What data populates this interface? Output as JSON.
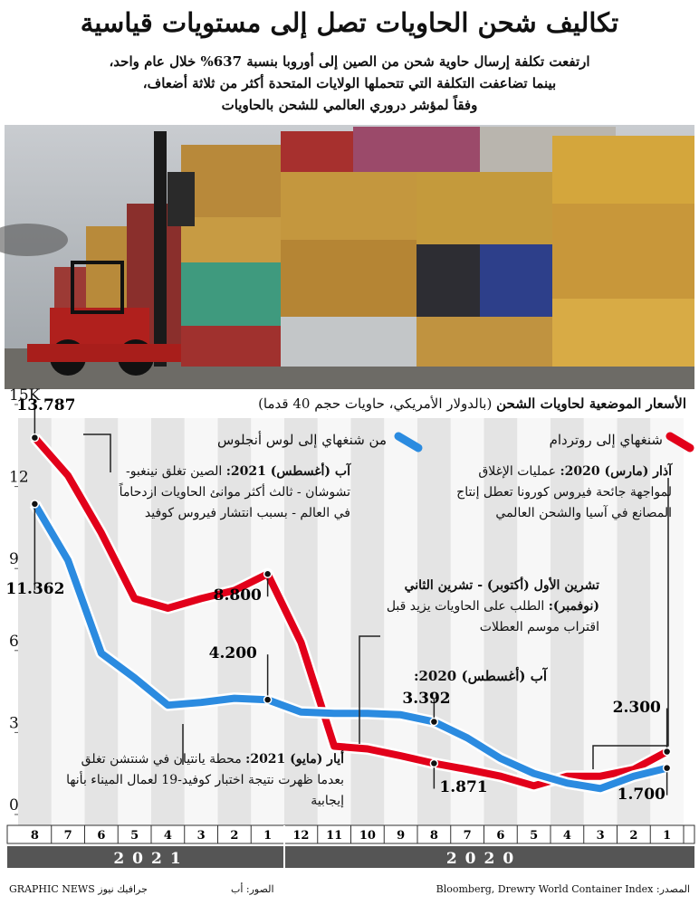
{
  "header": {
    "title": "تكاليف شحن الحاويات تصل إلى مستويات قياسية",
    "subtitle": [
      "ارتفعت تكلفة إرسال حاوية شحن من الصين إلى أوروبا بنسبة 637% خلال عام واحد،",
      "بينما تضاعفت التكلفة التي تتحملها الولايات المتحدة أكثر من ثلاثة أضعاف،",
      "وفقاً لمؤشر دروري العالمي للشحن بالحاويات"
    ]
  },
  "chart_data": {
    "type": "line",
    "title": "الأسعار الموضعية لحاويات الشحن",
    "subtitle": "(بالدولار الأمريكي، حاويات حجم 40 قدما)",
    "categories": [
      "1",
      "2",
      "3",
      "4",
      "5",
      "6",
      "7",
      "8",
      "9",
      "10",
      "11",
      "12",
      "1",
      "2",
      "3",
      "4",
      "5",
      "6",
      "7",
      "8"
    ],
    "year_labels": [
      "2020",
      "2021"
    ],
    "ylim": [
      0,
      15
    ],
    "yticks": [
      0,
      3,
      6,
      9,
      12,
      {
        "value": 15,
        "label": "15K"
      }
    ],
    "series": [
      {
        "name": "شنغهاي إلى روتردام",
        "color": "#e2001a",
        "values": [
          2.3,
          1.65,
          1.4,
          1.4,
          1.05,
          1.4,
          1.65,
          1.871,
          2.15,
          2.4,
          2.5,
          6.3,
          8.8,
          8.2,
          7.9,
          7.55,
          7.9,
          10.3,
          12.4,
          13.787
        ],
        "value_labels": [
          "2.300",
          null,
          null,
          null,
          null,
          null,
          null,
          "1.871",
          null,
          null,
          null,
          null,
          "8.800",
          null,
          null,
          null,
          null,
          null,
          null,
          "13.787"
        ]
      },
      {
        "name": "من شنغهاي إلى لوس أنجلوس",
        "color": "#2b8be0",
        "values": [
          1.7,
          1.4,
          0.95,
          1.15,
          1.5,
          2.05,
          2.8,
          3.392,
          3.65,
          3.7,
          3.7,
          3.75,
          4.2,
          4.25,
          4.1,
          4.0,
          5.0,
          5.9,
          9.3,
          11.362
        ],
        "value_labels": [
          "1.700",
          null,
          null,
          null,
          null,
          null,
          null,
          "3.392",
          null,
          null,
          null,
          null,
          "4.200",
          null,
          null,
          null,
          null,
          null,
          null,
          "11.362"
        ]
      }
    ],
    "annotations": [
      {
        "heading": "آب (أغسطس) 2021:",
        "text": "الصين تغلق نينغبو-تشوشان - ثالث أكثر موانئ الحاويات ازدحاماً في العالم - بسبب انتشار فيروس كوفيد"
      },
      {
        "heading": "آذار (مارس) 2020:",
        "text": "عمليات الإغلاق لمواجهة جائحة فيروس كورونا تعطل إنتاج المصانع في آسيا والشحن العالمي"
      },
      {
        "heading": "تشرين الأول (أكتوبر) - تشرين الثاني (نوفمبر):",
        "text": "الطلب على الحاويات يزيد قبل اقتراب موسم العطلات"
      },
      {
        "heading": "أيار (مايو) 2021:",
        "text": "محطة يانتيان في شنتشن تغلق بعدما ظهرت نتيجة اختبار كوفيد-19 لعمال الميناء بأنها إيجابية"
      },
      {
        "heading": "آب (أغسطس) 2020:"
      }
    ]
  },
  "footer": {
    "source": "المصدر: Bloomberg, Drewry World Container Index",
    "photo": "الصور: أب",
    "credit": "GRAPHIC NEWS جرافيك نيوز"
  }
}
